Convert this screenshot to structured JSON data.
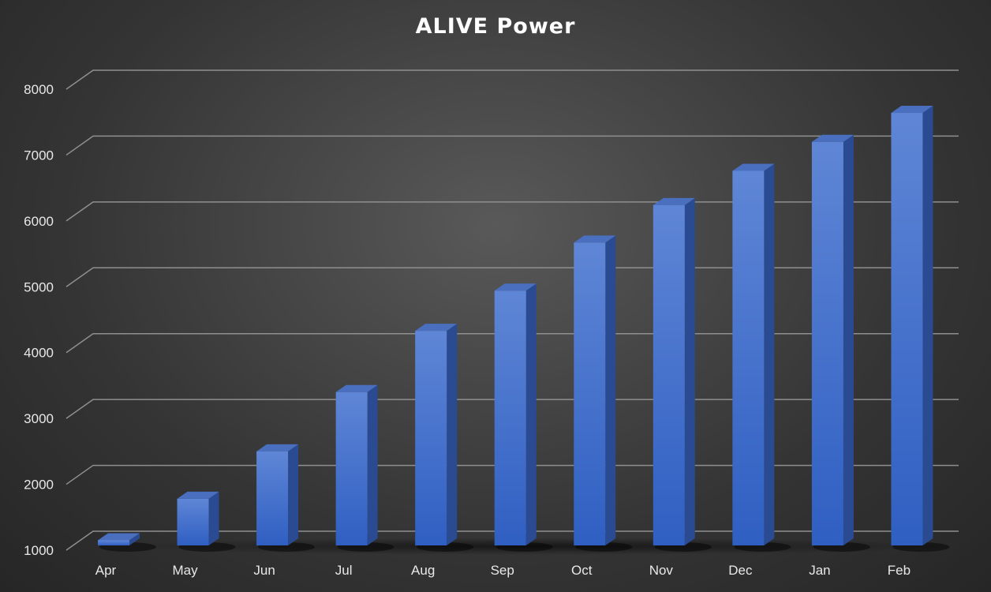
{
  "chart_data": {
    "type": "bar",
    "title": "ALIVE Power",
    "xlabel": "",
    "ylabel": "",
    "categories": [
      "Apr",
      "May",
      "Jun",
      "Jul",
      "Aug",
      "Sep",
      "Oct",
      "Nov",
      "Dec",
      "Jan",
      "Feb"
    ],
    "series": [
      {
        "values": [
          1150,
          1780,
          2500,
          3400,
          4330,
          4940,
          5670,
          6240,
          6760,
          7200,
          7640
        ]
      }
    ],
    "ylim": [
      1000,
      8000
    ],
    "yticks": [
      1000,
      2000,
      3000,
      4000,
      5000,
      6000,
      7000,
      8000
    ],
    "grid": true,
    "legend": "none",
    "style": "3d-column",
    "colors": {
      "bar_front_top": "#5f86d6",
      "bar_front_bottom": "#2f5fc2",
      "bar_side": "#2a4b91",
      "bar_top": "#4a6fbf",
      "background": "#3a3a3a",
      "gridline": "#8f8f8f",
      "text": "#ffffff"
    }
  }
}
